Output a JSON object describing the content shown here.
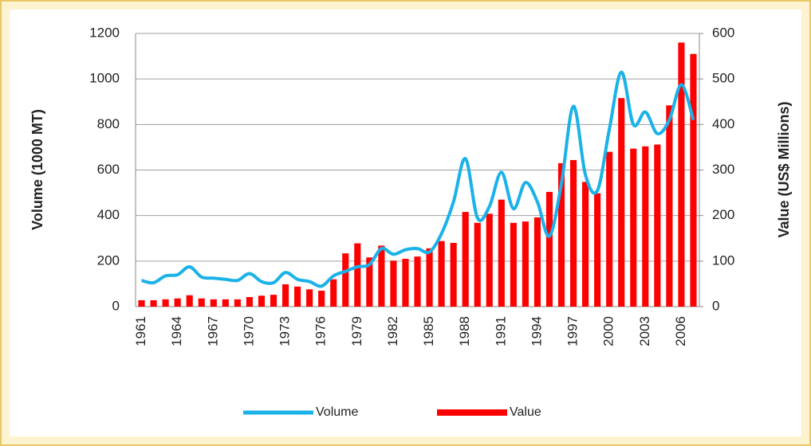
{
  "chart_data": {
    "type": "combo",
    "ylabel": "Volume (1000 MT)",
    "y2label": "Value (US$ Millions)",
    "categories": [
      "1961",
      null,
      null,
      "1964",
      null,
      null,
      "1967",
      null,
      null,
      "1970",
      null,
      null,
      "1973",
      null,
      null,
      "1976",
      null,
      null,
      "1979",
      null,
      null,
      "1982",
      null,
      null,
      "1985",
      null,
      null,
      "1988",
      null,
      null,
      "1991",
      null,
      null,
      "1994",
      null,
      null,
      "1997",
      null,
      null,
      "2000",
      null,
      null,
      "2003",
      null,
      null,
      "2006",
      null
    ],
    "series": [
      {
        "name": "Volume",
        "type": "line",
        "axis": "y",
        "color": "#1ab2e8",
        "values": [
          115,
          105,
          135,
          140,
          175,
          130,
          125,
          120,
          115,
          145,
          110,
          105,
          150,
          120,
          110,
          90,
          135,
          155,
          175,
          185,
          255,
          230,
          250,
          255,
          240,
          320,
          460,
          650,
          390,
          440,
          590,
          430,
          545,
          460,
          310,
          540,
          880,
          580,
          510,
          780,
          1030,
          800,
          855,
          760,
          820,
          975,
          820
        ]
      },
      {
        "name": "Value",
        "type": "bar",
        "axis": "y2",
        "color": "#ff0000",
        "values": [
          14,
          14,
          16,
          18,
          25,
          18,
          16,
          16,
          16,
          21,
          24,
          26,
          49,
          44,
          38,
          35,
          60,
          117,
          139,
          108,
          134,
          101,
          105,
          110,
          128,
          144,
          140,
          208,
          184,
          204,
          235,
          184,
          187,
          196,
          252,
          315,
          322,
          274,
          249,
          340,
          458,
          347,
          352,
          356,
          442,
          580,
          555
        ]
      }
    ],
    "ylim": [
      0,
      1200
    ],
    "yticks": [
      0,
      200,
      400,
      600,
      800,
      1000,
      1200
    ],
    "y2lim": [
      0,
      600
    ],
    "y2ticks": [
      0,
      100,
      200,
      300,
      400,
      500,
      600
    ],
    "grid": true,
    "legend": "bottom"
  }
}
